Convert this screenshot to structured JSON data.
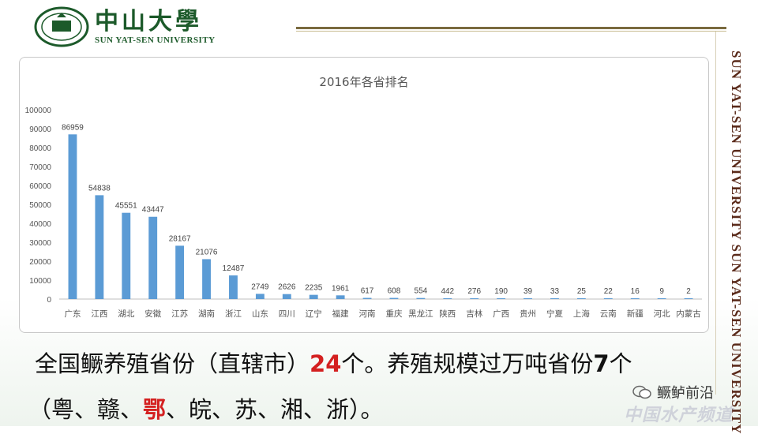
{
  "header": {
    "logo_cn": "中山大學",
    "logo_en": "SUN YAT-SEN UNIVERSITY",
    "side_text": "SUN YAT-SEN UNIVERSITY SUN YAT-SEN UNIVERSITY"
  },
  "chart_data": {
    "type": "bar",
    "title": "2016年各省排名",
    "categories": [
      "广东",
      "江西",
      "湖北",
      "安徽",
      "江苏",
      "湖南",
      "浙江",
      "山东",
      "四川",
      "辽宁",
      "福建",
      "河南",
      "重庆",
      "黑龙江",
      "陕西",
      "吉林",
      "广西",
      "贵州",
      "宁夏",
      "上海",
      "云南",
      "新疆",
      "河北",
      "内蒙古"
    ],
    "values": [
      86959,
      54838,
      45551,
      43447,
      28167,
      21076,
      12487,
      2749,
      2626,
      2235,
      1961,
      617,
      608,
      554,
      442,
      276,
      190,
      39,
      33,
      25,
      22,
      16,
      9,
      2
    ],
    "ylim": [
      0,
      100000
    ],
    "yticks": [
      0,
      10000,
      20000,
      30000,
      40000,
      50000,
      60000,
      70000,
      80000,
      90000,
      100000
    ],
    "grid": false,
    "bar_color": "#5b9bd5"
  },
  "text": {
    "l1_a": "全国鳜养殖省份（直辖市）",
    "l1_num1": "24",
    "l1_b": "个。养殖规模过万吨省份",
    "l1_num2": "7",
    "l1_c": "个",
    "l2_a": "（粤、赣、",
    "l2_red": "鄂",
    "l2_b": "、皖、苏、湘、浙）。"
  },
  "watermark": {
    "account": "鳜鲈前沿",
    "site": "中国水产频道"
  }
}
